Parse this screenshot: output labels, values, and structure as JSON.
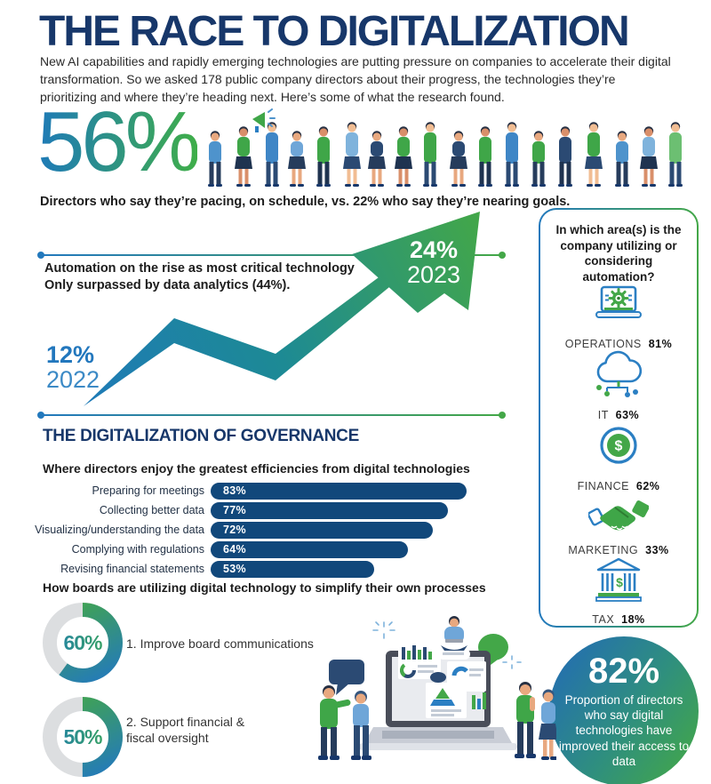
{
  "colors": {
    "navy_heading": "#17376a",
    "blue": "#2379bd",
    "green": "#43a748",
    "bar_navy": "#11487b",
    "donut_gray": "#dcdee0"
  },
  "header": {
    "title": "THE RACE TO DIGITALIZATION",
    "intro": "New AI capabilities and rapidly emerging technologies are putting pressure on companies to accelerate their digital transformation. So we asked 178 public company directors about their progress, the technologies they’re prioritizing and where they’re heading next. Here’s some of what the research found."
  },
  "pacing_stat": {
    "value": "56%",
    "caption": "Directors who say they’re pacing, on schedule, vs. 22% who say they’re nearing goals."
  },
  "automation_trend": {
    "note_line1": "Automation on the rise as most critical technology",
    "note_line2": "Only surpassed by data analytics (44%).",
    "start": {
      "pct": "12%",
      "year": "2022"
    },
    "end": {
      "pct": "24%",
      "year": "2023"
    }
  },
  "automation_areas": {
    "title": "In which area(s) is the company utilizing or considering automation?",
    "items": [
      {
        "label": "OPERATIONS",
        "value": "81%",
        "icon": "laptop-gear-icon"
      },
      {
        "label": "IT",
        "value": "63%",
        "icon": "cloud-network-icon"
      },
      {
        "label": "FINANCE",
        "value": "62%",
        "icon": "dollar-coin-icon"
      },
      {
        "label": "MARKETING",
        "value": "33%",
        "icon": "handshake-icon"
      },
      {
        "label": "TAX",
        "value": "18%",
        "icon": "bank-icon"
      }
    ]
  },
  "governance": {
    "heading": "THE DIGITALIZATION OF GOVERNANCE",
    "efficiencies": {
      "subtitle": "Where directors enjoy the greatest efficiencies from digital technologies",
      "rows": [
        {
          "label": "Preparing for meetings",
          "value": 83,
          "display": "83%"
        },
        {
          "label": "Collecting better data",
          "value": 77,
          "display": "77%"
        },
        {
          "label": "Visualizing/understanding the data",
          "value": 72,
          "display": "72%"
        },
        {
          "label": "Complying with regulations",
          "value": 64,
          "display": "64%"
        },
        {
          "label": "Revising financial statements",
          "value": 53,
          "display": "53%"
        }
      ]
    },
    "board_usage": {
      "subtitle": "How boards are utilizing digital technology to simplify their own processes",
      "items": [
        {
          "value": 60,
          "display": "60%",
          "label": "1. Improve board communications"
        },
        {
          "value": 50,
          "display": "50%",
          "label": "2. Support financial & fiscal oversight"
        }
      ]
    }
  },
  "access_stat": {
    "value": "82%",
    "caption": "Proportion of directors who say digital technologies have improved their access to data"
  },
  "chart_data": [
    {
      "type": "line",
      "title": "Automation cited as most critical technology",
      "x": [
        "2022",
        "2023"
      ],
      "values": [
        12,
        24
      ],
      "unit": "%",
      "annotation": "Automation on the rise as most critical technology. Only surpassed by data analytics (44%)."
    },
    {
      "type": "bar",
      "title": "Where directors enjoy the greatest efficiencies from digital technologies",
      "orientation": "horizontal",
      "categories": [
        "Preparing for meetings",
        "Collecting better data",
        "Visualizing/understanding the data",
        "Complying with regulations",
        "Revising financial statements"
      ],
      "values": [
        83,
        77,
        72,
        64,
        53
      ],
      "unit": "%",
      "xlim": [
        0,
        100
      ]
    },
    {
      "type": "bar",
      "title": "In which area(s) is the company utilizing or considering automation?",
      "categories": [
        "Operations",
        "IT",
        "Finance",
        "Marketing",
        "Tax"
      ],
      "values": [
        81,
        63,
        62,
        33,
        18
      ],
      "unit": "%"
    },
    {
      "type": "pie",
      "style": "donut",
      "title": "How boards are utilizing digital technology to simplify their own processes",
      "slices": [
        {
          "label": "1. Improve board communications",
          "value": 60
        },
        {
          "label": "2. Support financial & fiscal oversight",
          "value": 50
        }
      ],
      "unit": "%"
    },
    {
      "type": "table",
      "title": "Key stats",
      "rows": [
        {
          "label": "Directors who say they’re pacing, on schedule",
          "value": 56,
          "unit": "%"
        },
        {
          "label": "Directors who say they’re nearing goals",
          "value": 22,
          "unit": "%"
        },
        {
          "label": "Data analytics cited as critical technology",
          "value": 44,
          "unit": "%"
        },
        {
          "label": "Directors who say digital technologies have improved their access to data",
          "value": 82,
          "unit": "%"
        }
      ]
    }
  ]
}
